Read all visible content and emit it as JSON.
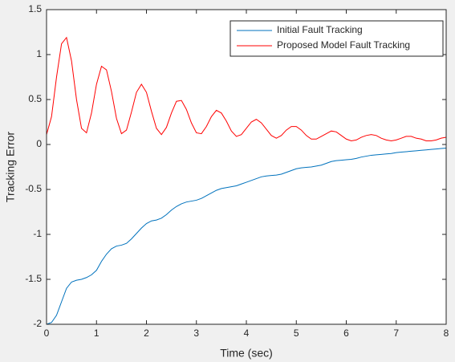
{
  "chart_data": {
    "type": "line",
    "x_label": "Time (sec)",
    "y_label": "Tracking Error",
    "x": [
      0,
      0.1,
      0.2,
      0.3,
      0.4,
      0.5,
      0.6,
      0.7,
      0.8,
      0.9,
      1,
      1.1,
      1.2,
      1.3,
      1.4,
      1.5,
      1.6,
      1.7,
      1.8,
      1.9,
      2,
      2.1,
      2.2,
      2.3,
      2.4,
      2.5,
      2.6,
      2.7,
      2.8,
      2.9,
      3,
      3.1,
      3.2,
      3.3,
      3.4,
      3.5,
      3.6,
      3.7,
      3.8,
      3.9,
      4,
      4.1,
      4.2,
      4.3,
      4.4,
      4.5,
      4.6,
      4.7,
      4.8,
      4.9,
      5,
      5.1,
      5.2,
      5.3,
      5.4,
      5.5,
      5.6,
      5.7,
      5.8,
      5.9,
      6,
      6.1,
      6.2,
      6.3,
      6.4,
      6.5,
      6.6,
      6.7,
      6.8,
      6.9,
      7,
      7.1,
      7.2,
      7.3,
      7.4,
      7.5,
      7.6,
      7.7,
      7.8,
      7.9,
      8
    ],
    "series": [
      {
        "name": "Initial Fault Tracking",
        "color": "#0072bd",
        "values": [
          -2.0,
          -1.98,
          -1.9,
          -1.75,
          -1.6,
          -1.53,
          -1.51,
          -1.5,
          -1.48,
          -1.45,
          -1.4,
          -1.3,
          -1.22,
          -1.16,
          -1.13,
          -1.12,
          -1.1,
          -1.05,
          -0.99,
          -0.93,
          -0.88,
          -0.85,
          -0.84,
          -0.82,
          -0.78,
          -0.73,
          -0.69,
          -0.66,
          -0.64,
          -0.63,
          -0.62,
          -0.6,
          -0.57,
          -0.54,
          -0.51,
          -0.49,
          -0.48,
          -0.47,
          -0.46,
          -0.44,
          -0.42,
          -0.4,
          -0.38,
          -0.36,
          -0.35,
          -0.345,
          -0.34,
          -0.33,
          -0.31,
          -0.29,
          -0.27,
          -0.26,
          -0.255,
          -0.25,
          -0.24,
          -0.23,
          -0.21,
          -0.19,
          -0.18,
          -0.175,
          -0.17,
          -0.165,
          -0.155,
          -0.14,
          -0.13,
          -0.12,
          -0.115,
          -0.11,
          -0.105,
          -0.1,
          -0.09,
          -0.085,
          -0.08,
          -0.075,
          -0.07,
          -0.065,
          -0.06,
          -0.055,
          -0.05,
          -0.045,
          -0.04
        ]
      },
      {
        "name": "Proposed Model Fault Tracking",
        "color": "#ff0000",
        "values": [
          0.11,
          0.31,
          0.75,
          1.12,
          1.19,
          0.93,
          0.5,
          0.18,
          0.13,
          0.35,
          0.67,
          0.87,
          0.83,
          0.59,
          0.29,
          0.12,
          0.16,
          0.36,
          0.58,
          0.67,
          0.58,
          0.37,
          0.18,
          0.11,
          0.19,
          0.35,
          0.48,
          0.49,
          0.39,
          0.24,
          0.13,
          0.12,
          0.2,
          0.31,
          0.38,
          0.35,
          0.26,
          0.15,
          0.09,
          0.11,
          0.18,
          0.25,
          0.28,
          0.24,
          0.17,
          0.1,
          0.07,
          0.1,
          0.16,
          0.2,
          0.2,
          0.16,
          0.1,
          0.06,
          0.06,
          0.09,
          0.12,
          0.15,
          0.14,
          0.1,
          0.06,
          0.04,
          0.05,
          0.08,
          0.1,
          0.11,
          0.1,
          0.07,
          0.05,
          0.04,
          0.05,
          0.07,
          0.09,
          0.09,
          0.07,
          0.06,
          0.04,
          0.04,
          0.05,
          0.07,
          0.08
        ]
      }
    ],
    "xlim": [
      0,
      8
    ],
    "ylim": [
      -2,
      1.5
    ],
    "xticks": [
      0,
      1,
      2,
      3,
      4,
      5,
      6,
      7,
      8
    ],
    "yticks": [
      -2,
      -1.5,
      -1,
      -0.5,
      0,
      0.5,
      1,
      1.5
    ],
    "legend": "northeast",
    "grid": false
  }
}
